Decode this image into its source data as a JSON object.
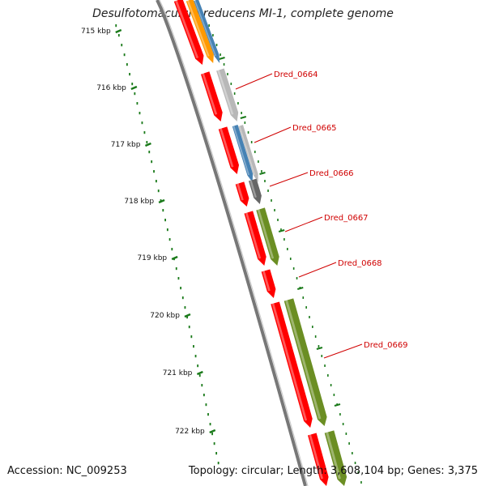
{
  "title": "Desulfotomaculum reducens MI-1, complete genome",
  "footer": {
    "accession": "Accession: NC_009253",
    "topology": "Topology: circular; Length: 3,608,104 bp; Genes: 3,375"
  },
  "ruler_labels": [
    "715 kbp",
    "716 kbp",
    "717 kbp",
    "718 kbp",
    "719 kbp",
    "720 kbp",
    "721 kbp",
    "722 kbp"
  ],
  "gene_labels": [
    "Dred_0664",
    "Dred_0665",
    "Dred_0666",
    "Dred_0667",
    "Dred_0668",
    "Dred_0669"
  ],
  "colors": {
    "backbone": "#777777",
    "gene_red": "#ff0000",
    "cds_green": "#6b8e23",
    "cds_gray": "#b8b8b8",
    "cds_dark": "#666666",
    "cds_blue": "#4682b4",
    "cds_orange": "#ff9900",
    "dots": "#1a7a1a",
    "label_red": "#d00000"
  }
}
